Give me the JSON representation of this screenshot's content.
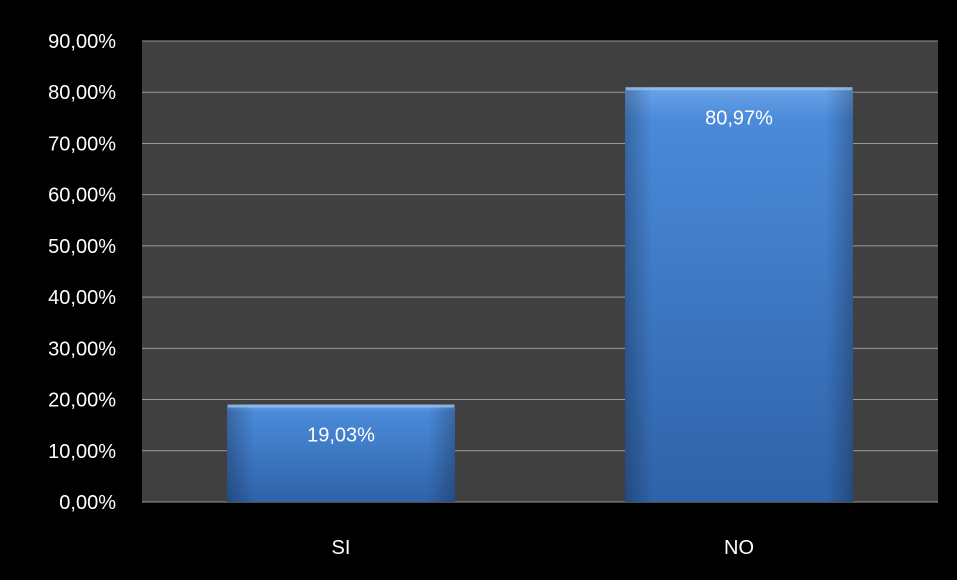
{
  "chart_data": {
    "type": "bar",
    "title": "",
    "xlabel": "",
    "ylabel": "",
    "categories": [
      "SI",
      "NO"
    ],
    "values": [
      19.03,
      80.97
    ],
    "data_labels": [
      "19,03%",
      "80,97%"
    ],
    "ylim": [
      0,
      90
    ],
    "y_ticks": [
      0,
      10,
      20,
      30,
      40,
      50,
      60,
      70,
      80,
      90
    ],
    "y_tick_labels": [
      "0,00%",
      "10,00%",
      "20,00%",
      "30,00%",
      "40,00%",
      "50,00%",
      "60,00%",
      "70,00%",
      "80,00%",
      "90,00%"
    ],
    "grid": true,
    "legend": "none",
    "colors": {
      "background": "#000000",
      "plot_area": "#404040",
      "gridline": "#9a9a9a",
      "bar": "#3f7fd0",
      "bar_top": "#6aa3e8",
      "bar_bottom": "#2f62a8",
      "text": "#ffffff"
    }
  }
}
